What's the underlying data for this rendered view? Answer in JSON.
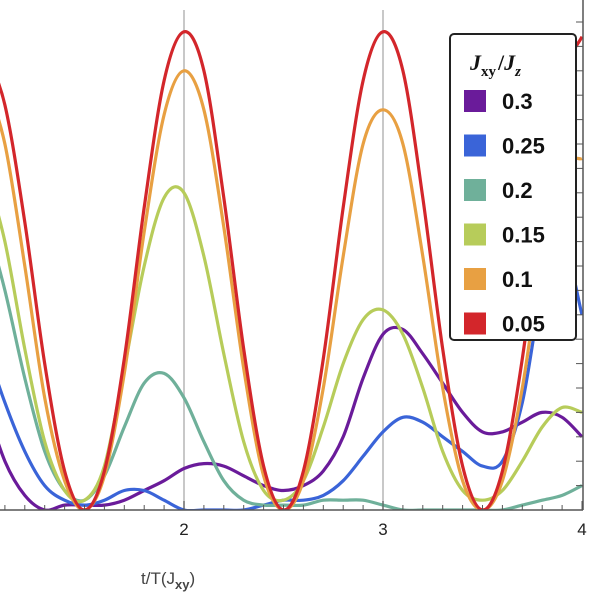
{
  "chart_data": {
    "type": "line",
    "xlabel": "t/T(J",
    "xlabel_sub": "xy",
    "xlabel_end": ")",
    "xlim": [
      1.0,
      4.0
    ],
    "ylim": [
      0,
      1.0
    ],
    "xticks": [
      2,
      3,
      4
    ],
    "grid": "vertical lines at x = 2 and 3",
    "legend": {
      "placement": "top-right",
      "title_parts": [
        "J",
        "xy",
        "/",
        "J",
        "z"
      ]
    },
    "series": [
      {
        "name": "0.3",
        "color": "#6a1b9a",
        "x": [
          1.0,
          1.1,
          1.2,
          1.3,
          1.4,
          1.5,
          1.6,
          1.7,
          1.8,
          1.9,
          2.0,
          2.1,
          2.2,
          2.3,
          2.4,
          2.5,
          2.6,
          2.7,
          2.8,
          2.9,
          3.0,
          3.1,
          3.2,
          3.3,
          3.4,
          3.5,
          3.6,
          3.7,
          3.8,
          3.9,
          4.0
        ],
        "y": [
          0.22,
          0.1,
          0.03,
          0.0,
          0.01,
          0.01,
          0.01,
          0.02,
          0.04,
          0.06,
          0.085,
          0.095,
          0.09,
          0.07,
          0.05,
          0.04,
          0.05,
          0.08,
          0.15,
          0.27,
          0.36,
          0.37,
          0.32,
          0.26,
          0.2,
          0.16,
          0.16,
          0.18,
          0.2,
          0.19,
          0.15
        ]
      },
      {
        "name": "0.25",
        "color": "#3a64d8",
        "x": [
          1.0,
          1.1,
          1.2,
          1.3,
          1.4,
          1.5,
          1.6,
          1.7,
          1.8,
          1.9,
          2.0,
          2.1,
          2.2,
          2.3,
          2.4,
          2.5,
          2.6,
          2.7,
          2.8,
          2.9,
          3.0,
          3.1,
          3.2,
          3.3,
          3.4,
          3.5,
          3.6,
          3.7,
          3.8,
          3.9,
          4.0
        ],
        "y": [
          0.34,
          0.22,
          0.12,
          0.05,
          0.02,
          0.01,
          0.02,
          0.04,
          0.04,
          0.02,
          0.0,
          0.0,
          0.0,
          0.0,
          0.01,
          0.02,
          0.02,
          0.03,
          0.06,
          0.11,
          0.16,
          0.19,
          0.18,
          0.15,
          0.12,
          0.09,
          0.1,
          0.22,
          0.45,
          0.55,
          0.4
        ]
      },
      {
        "name": "0.2",
        "color": "#6fb09a",
        "x": [
          1.0,
          1.1,
          1.2,
          1.3,
          1.4,
          1.5,
          1.6,
          1.7,
          1.8,
          1.9,
          2.0,
          2.1,
          2.2,
          2.3,
          2.4,
          2.5,
          2.6,
          2.7,
          2.8,
          2.9,
          3.0,
          3.1,
          3.2,
          3.3,
          3.4,
          3.5,
          3.6,
          3.7,
          3.8,
          3.9,
          4.0
        ],
        "y": [
          0.6,
          0.45,
          0.27,
          0.12,
          0.04,
          0.02,
          0.07,
          0.17,
          0.26,
          0.28,
          0.23,
          0.14,
          0.06,
          0.02,
          0.01,
          0.01,
          0.01,
          0.02,
          0.02,
          0.02,
          0.01,
          0.0,
          0.0,
          0.0,
          0.0,
          0.0,
          0.0,
          0.01,
          0.02,
          0.03,
          0.05
        ]
      },
      {
        "name": "0.15",
        "color": "#b7cc5a",
        "x": [
          1.0,
          1.1,
          1.2,
          1.3,
          1.4,
          1.5,
          1.6,
          1.7,
          1.8,
          1.9,
          2.0,
          2.1,
          2.2,
          2.3,
          2.4,
          2.5,
          2.6,
          2.7,
          2.8,
          2.9,
          3.0,
          3.1,
          3.2,
          3.3,
          3.4,
          3.5,
          3.6,
          3.7,
          3.8,
          3.9,
          4.0
        ],
        "y": [
          0.7,
          0.55,
          0.33,
          0.14,
          0.04,
          0.02,
          0.09,
          0.29,
          0.5,
          0.64,
          0.65,
          0.52,
          0.32,
          0.14,
          0.04,
          0.02,
          0.06,
          0.17,
          0.3,
          0.39,
          0.41,
          0.36,
          0.25,
          0.12,
          0.04,
          0.02,
          0.04,
          0.1,
          0.17,
          0.21,
          0.2
        ]
      },
      {
        "name": "0.1",
        "color": "#e8a042",
        "x": [
          1.0,
          1.1,
          1.2,
          1.3,
          1.4,
          1.5,
          1.6,
          1.7,
          1.8,
          1.9,
          2.0,
          2.1,
          2.2,
          2.3,
          2.4,
          2.5,
          2.6,
          2.7,
          2.8,
          2.9,
          3.0,
          3.1,
          3.2,
          3.3,
          3.4,
          3.5,
          3.6,
          3.7,
          3.8,
          3.9,
          4.0
        ],
        "y": [
          0.88,
          0.75,
          0.5,
          0.23,
          0.06,
          0.0,
          0.07,
          0.28,
          0.57,
          0.81,
          0.9,
          0.82,
          0.58,
          0.29,
          0.07,
          0.0,
          0.06,
          0.25,
          0.52,
          0.75,
          0.82,
          0.75,
          0.52,
          0.25,
          0.06,
          0.0,
          0.06,
          0.25,
          0.52,
          0.7,
          0.72
        ]
      },
      {
        "name": "0.05",
        "color": "#d3262b",
        "x": [
          1.0,
          1.1,
          1.2,
          1.3,
          1.4,
          1.5,
          1.6,
          1.7,
          1.8,
          1.9,
          2.0,
          2.1,
          2.2,
          2.3,
          2.4,
          2.5,
          2.6,
          2.7,
          2.8,
          2.9,
          3.0,
          3.1,
          3.2,
          3.3,
          3.4,
          3.5,
          3.6,
          3.7,
          3.8,
          3.9,
          4.0
        ],
        "y": [
          0.94,
          0.83,
          0.59,
          0.3,
          0.08,
          0.0,
          0.08,
          0.31,
          0.62,
          0.88,
          0.98,
          0.9,
          0.64,
          0.33,
          0.09,
          0.0,
          0.08,
          0.31,
          0.62,
          0.88,
          0.98,
          0.9,
          0.64,
          0.33,
          0.09,
          0.0,
          0.08,
          0.31,
          0.62,
          0.88,
          0.97
        ]
      }
    ]
  }
}
